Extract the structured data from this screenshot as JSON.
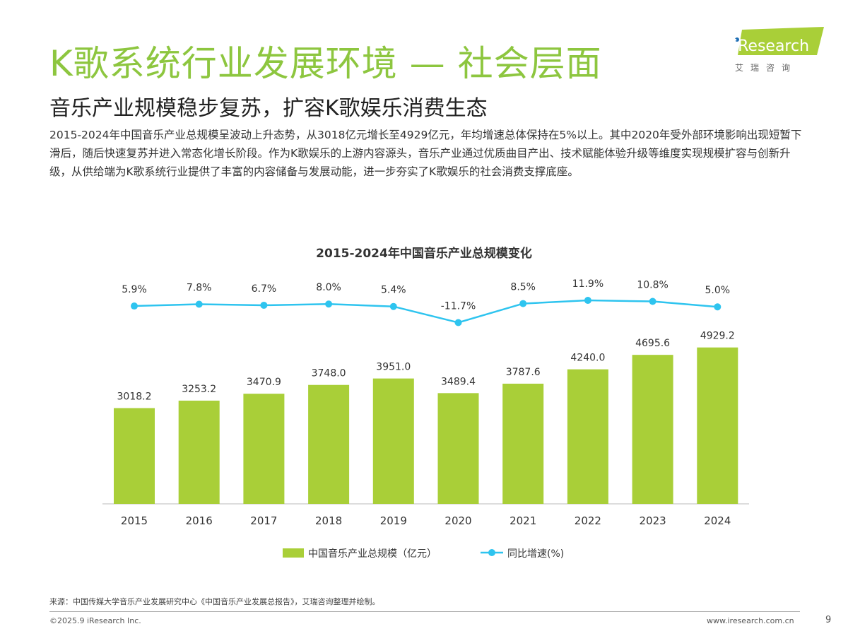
{
  "header": {
    "title": "K歌系统行业发展环境 — 社会层面",
    "subtitle": "音乐产业规模稳步复苏，扩容K歌娱乐消费生态",
    "body": "2015-2024年中国音乐产业总规模呈波动上升态势，从3018亿元增长至4929亿元，年均增速总体保持在5%以上。其中2020年受外部环境影响出现短暂下滑后，随后快速复苏并进入常态化增长阶段。作为K歌娱乐的上游内容源头，音乐产业通过优质曲目产出、技术赋能体验升级等维度实现规模扩容与创新升级，从供给端为K歌系统行业提供了丰富的内容储备与发展动能，进一步夯实了K歌娱乐的社会消费支撑底座。"
  },
  "logo": {
    "text": "iResearch",
    "cn": "艾 瑞 咨 询"
  },
  "colors": {
    "title": "#8dc63f",
    "bar": "#a9cf38",
    "line": "#2ec4ef"
  },
  "chart_data": {
    "type": "bar+line",
    "title": "2015-2024年中国音乐产业总规模变化",
    "categories": [
      "2015",
      "2016",
      "2017",
      "2018",
      "2019",
      "2020",
      "2021",
      "2022",
      "2023",
      "2024"
    ],
    "series": [
      {
        "name": "中国音乐产业总规模（亿元）",
        "type": "bar",
        "values": [
          3018.2,
          3253.2,
          3470.9,
          3748.0,
          3951.0,
          3489.4,
          3787.6,
          4240.0,
          4695.6,
          4929.2
        ],
        "labels": [
          "3018.2",
          "3253.2",
          "3470.9",
          "3748.0",
          "3951.0",
          "3489.4",
          "3787.6",
          "4240.0",
          "4695.6",
          "4929.2"
        ]
      },
      {
        "name": "同比增速(%)",
        "type": "line",
        "values": [
          5.9,
          7.8,
          6.7,
          8.0,
          5.4,
          -11.7,
          8.5,
          11.9,
          10.8,
          5.0
        ],
        "labels": [
          "5.9%",
          "7.8%",
          "6.7%",
          "8.0%",
          "5.4%",
          "-11.7%",
          "8.5%",
          "11.9%",
          "10.8%",
          "5.0%"
        ]
      }
    ],
    "legend": "bottom",
    "grid": false
  },
  "footer": {
    "source": "来源：中国传媒大学音乐产业发展研究中心《中国音乐产业发展总报告》，艾瑞咨询整理并绘制。",
    "copyright": "©2025.9 iResearch Inc.",
    "site": "www.iresearch.com.cn",
    "page": "9"
  }
}
